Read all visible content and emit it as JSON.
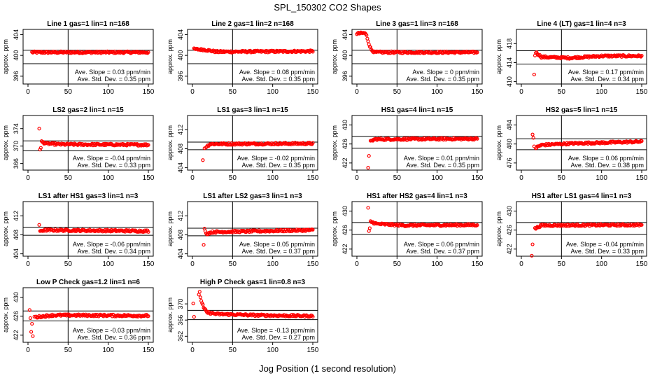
{
  "figure": {
    "title": "SPL_150302  CO2 Shapes",
    "xlabel": "Jog Position (1 second resolution)",
    "ylabel": "approx. ppm",
    "slope_prefix": "Ave. Slope = ",
    "slope_unit": " ppm/min",
    "std_prefix": "Ave. Std. Dev. = ",
    "std_unit": " ppm",
    "point_color": "#ff0000"
  },
  "chart_data": [
    {
      "type": "scatter",
      "title": "Line 1 gas=1 lin=1 n=168",
      "xlim": [
        0,
        150
      ],
      "xticks": [
        0,
        50,
        100,
        150
      ],
      "ylim": [
        394.5,
        405
      ],
      "yticks": [
        396,
        400,
        404
      ],
      "hlines": [
        401,
        398.4
      ],
      "vline": 50,
      "slope": "0.03",
      "std": "0.35",
      "shape": [
        [
          5,
          400.6
        ],
        [
          150,
          400.6
        ]
      ]
    },
    {
      "type": "scatter",
      "title": "Line 2 gas=1 lin=2 n=168",
      "xlim": [
        0,
        150
      ],
      "xticks": [
        0,
        50,
        100,
        150
      ],
      "ylim": [
        394.5,
        405
      ],
      "yticks": [
        396,
        400,
        404
      ],
      "hlines": [
        401,
        398.4
      ],
      "vline": 50,
      "slope": "0.08",
      "std": "0.35",
      "shape": [
        [
          2,
          401.2
        ],
        [
          15,
          401.1
        ],
        [
          30,
          400.7
        ],
        [
          150,
          400.8
        ]
      ]
    },
    {
      "type": "scatter",
      "title": "Line 3 gas=1 lin=3 n=168",
      "xlim": [
        0,
        150
      ],
      "xticks": [
        0,
        50,
        100,
        150
      ],
      "ylim": [
        394.5,
        405
      ],
      "yticks": [
        396,
        400,
        404
      ],
      "hlines": [
        401,
        398.4
      ],
      "vline": 50,
      "slope": "0",
      "std": "0.35",
      "shape": [
        [
          0,
          404.2
        ],
        [
          10,
          404.3
        ],
        [
          12,
          403.8
        ],
        [
          14,
          402.8
        ],
        [
          16,
          401.8
        ],
        [
          18,
          401.1
        ],
        [
          22,
          400.6
        ],
        [
          150,
          400.6
        ]
      ]
    },
    {
      "type": "scatter",
      "title": "Line 4 (LT) gas=1 lin=4 n=3",
      "xlim": [
        0,
        150
      ],
      "xticks": [
        0,
        50,
        100,
        150
      ],
      "ylim": [
        409.5,
        421
      ],
      "yticks": [
        410,
        414,
        418
      ],
      "hlines": [
        416.5,
        413.7
      ],
      "vline": 50,
      "slope": "0.17",
      "std": "0.34",
      "shape": [
        [
          18,
          416.2
        ],
        [
          25,
          415.2
        ],
        [
          60,
          415.0
        ],
        [
          100,
          415.4
        ],
        [
          150,
          415.4
        ]
      ],
      "extra": [
        [
          16,
          411.5
        ],
        [
          17,
          415.5
        ]
      ]
    },
    {
      "type": "scatter",
      "title": "LS2 gas=2 lin=1 n=15",
      "xlim": [
        0,
        150
      ],
      "xticks": [
        0,
        50,
        100,
        150
      ],
      "ylim": [
        364.5,
        377
      ],
      "yticks": [
        366,
        370,
        374
      ],
      "hlines": [
        371.2,
        368.9
      ],
      "vline": 50,
      "slope": "-0.04",
      "std": "0.33",
      "shape": [
        [
          17,
          371.0
        ],
        [
          22,
          370.6
        ],
        [
          40,
          370.4
        ],
        [
          150,
          370.3
        ]
      ],
      "extra": [
        [
          14,
          374.0
        ],
        [
          15,
          369.2
        ],
        [
          16,
          369.6
        ]
      ]
    },
    {
      "type": "scatter",
      "title": "LS1 gas=3 lin=1 n=15",
      "xlim": [
        0,
        150
      ],
      "xticks": [
        0,
        50,
        100,
        150
      ],
      "ylim": [
        403.5,
        415
      ],
      "yticks": [
        404,
        408,
        412
      ],
      "hlines": [
        409.4,
        407.8
      ],
      "vline": 50,
      "slope": "-0.02",
      "std": "0.35",
      "shape": [
        [
          17,
          408.4
        ],
        [
          22,
          409.0
        ],
        [
          150,
          409.1
        ]
      ],
      "extra": [
        [
          13,
          405.6
        ],
        [
          15,
          408.1
        ]
      ]
    },
    {
      "type": "scatter",
      "title": "HS1 gas=4 lin=1 n=15",
      "xlim": [
        0,
        150
      ],
      "xticks": [
        0,
        50,
        100,
        150
      ],
      "ylim": [
        420.5,
        432
      ],
      "yticks": [
        422,
        426,
        430
      ],
      "hlines": [
        427.6,
        425.1
      ],
      "vline": 50,
      "slope": "0.01",
      "std": "0.35",
      "shape": [
        [
          17,
          426.5
        ],
        [
          22,
          427.0
        ],
        [
          150,
          427.1
        ]
      ],
      "extra": [
        [
          14,
          421.0
        ],
        [
          15,
          423.5
        ]
      ]
    },
    {
      "type": "scatter",
      "title": "HS2 gas=5 lin=1 n=15",
      "xlim": [
        0,
        150
      ],
      "xticks": [
        0,
        50,
        100,
        150
      ],
      "ylim": [
        474.5,
        486
      ],
      "yticks": [
        476,
        480,
        484
      ],
      "hlines": [
        481.1,
        478.8
      ],
      "vline": 50,
      "slope": "0.06",
      "std": "0.38",
      "shape": [
        [
          18,
          479.2
        ],
        [
          25,
          479.8
        ],
        [
          60,
          480.1
        ],
        [
          150,
          480.5
        ]
      ],
      "extra": [
        [
          14,
          482.0
        ],
        [
          15,
          481.3
        ],
        [
          16,
          479.5
        ]
      ]
    },
    {
      "type": "scatter",
      "title": "LS1 after HS1 gas=3 lin=1 n=3",
      "xlim": [
        0,
        150
      ],
      "xticks": [
        0,
        50,
        100,
        150
      ],
      "ylim": [
        403.5,
        415
      ],
      "yticks": [
        404,
        408,
        412
      ],
      "hlines": [
        409.6,
        407.9
      ],
      "vline": 50,
      "slope": "-0.06",
      "std": "0.34",
      "shape": [
        [
          16,
          408.9
        ],
        [
          22,
          409.0
        ],
        [
          150,
          408.8
        ]
      ],
      "extra": [
        [
          14,
          410.1
        ],
        [
          15,
          408.8
        ]
      ]
    },
    {
      "type": "scatter",
      "title": "LS1 after LS2 gas=3 lin=1 n=3",
      "xlim": [
        0,
        150
      ],
      "xticks": [
        0,
        50,
        100,
        150
      ],
      "ylim": [
        403.5,
        415
      ],
      "yticks": [
        404,
        408,
        412
      ],
      "hlines": [
        409.4,
        407.8
      ],
      "vline": 50,
      "slope": "0.05",
      "std": "0.37",
      "shape": [
        [
          17,
          408.2
        ],
        [
          25,
          408.6
        ],
        [
          150,
          409.0
        ]
      ],
      "extra": [
        [
          14,
          405.9
        ],
        [
          15,
          409.3
        ],
        [
          16,
          408.8
        ]
      ]
    },
    {
      "type": "scatter",
      "title": "HS1 after HS2 gas=4 lin=1 n=3",
      "xlim": [
        0,
        150
      ],
      "xticks": [
        0,
        50,
        100,
        150
      ],
      "ylim": [
        420.5,
        432
      ],
      "yticks": [
        422,
        426,
        430
      ],
      "hlines": [
        427.6,
        425.1
      ],
      "vline": 50,
      "slope": "0.06",
      "std": "0.37",
      "shape": [
        [
          17,
          427.8
        ],
        [
          25,
          427.3
        ],
        [
          60,
          427.0
        ],
        [
          150,
          427.1
        ]
      ],
      "extra": [
        [
          14,
          430.7
        ],
        [
          15,
          425.8
        ],
        [
          16,
          426.4
        ]
      ]
    },
    {
      "type": "scatter",
      "title": "HS1 after LS1 gas=4 lin=1 n=3",
      "xlim": [
        0,
        150
      ],
      "xticks": [
        0,
        50,
        100,
        150
      ],
      "ylim": [
        420.5,
        432
      ],
      "yticks": [
        422,
        426,
        430
      ],
      "hlines": [
        427.6,
        425.1
      ],
      "vline": 50,
      "slope": "-0.04",
      "std": "0.33",
      "shape": [
        [
          17,
          426.3
        ],
        [
          25,
          427.0
        ],
        [
          150,
          427.1
        ]
      ],
      "extra": [
        [
          13,
          420.6
        ],
        [
          14,
          423.0
        ]
      ]
    },
    {
      "type": "scatter",
      "title": "Low P Check gas=1.2 lin=1 n=6",
      "xlim": [
        0,
        150
      ],
      "xticks": [
        0,
        50,
        100,
        150
      ],
      "ylim": [
        420.5,
        432
      ],
      "yticks": [
        422,
        426,
        430
      ],
      "hlines": [
        427.1,
        425.0
      ],
      "vline": 50,
      "slope": "-0.03",
      "std": "0.36",
      "shape": [
        [
          10,
          425.8
        ],
        [
          30,
          426.2
        ],
        [
          60,
          426.2
        ],
        [
          150,
          426.1
        ]
      ],
      "extra": [
        [
          2,
          427.3
        ],
        [
          3,
          425.6
        ],
        [
          4,
          422.7
        ],
        [
          5,
          424.4
        ],
        [
          6,
          421.8
        ],
        [
          8,
          425.9
        ]
      ]
    },
    {
      "type": "scatter",
      "title": "High P Check gas=1 lin=0.8 n=3",
      "xlim": [
        0,
        150
      ],
      "xticks": [
        0,
        50,
        100,
        150
      ],
      "ylim": [
        360.5,
        374
      ],
      "yticks": [
        362,
        366,
        370
      ],
      "hlines": [
        368.4,
        366.1
      ],
      "vline": 50,
      "slope": "-0.13",
      "std": "0.27",
      "shape": [
        [
          10,
          371.5
        ],
        [
          14,
          369.0
        ],
        [
          18,
          367.9
        ],
        [
          30,
          367.5
        ],
        [
          80,
          367.2
        ],
        [
          150,
          367.0
        ]
      ],
      "extra": [
        [
          1,
          370.1
        ],
        [
          2,
          366.8
        ],
        [
          8,
          372.3
        ],
        [
          9,
          373.0
        ]
      ]
    }
  ]
}
